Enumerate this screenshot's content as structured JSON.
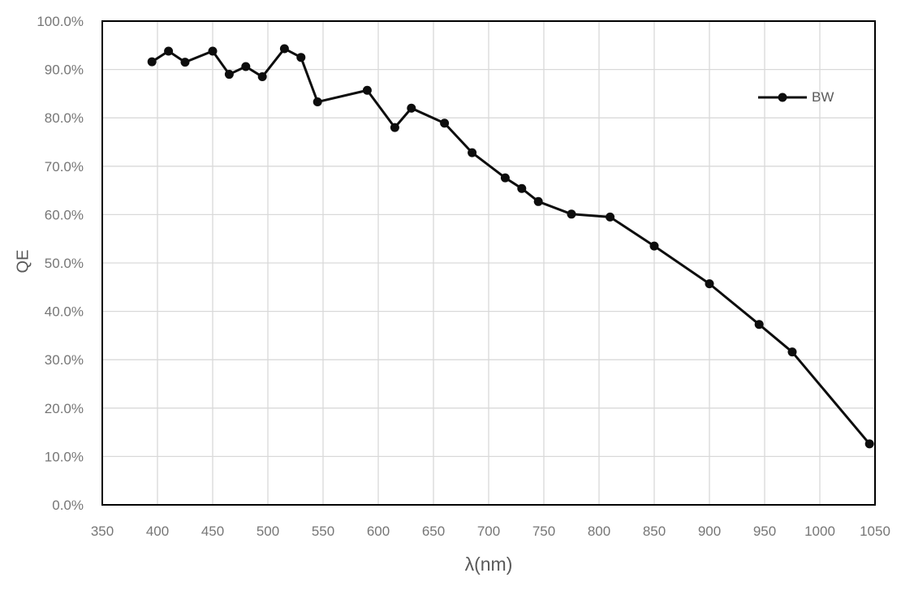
{
  "chart_data": {
    "type": "line",
    "title": "",
    "xlabel": "λ(nm)",
    "ylabel": "QE",
    "xlim": [
      350,
      1050
    ],
    "ylim": [
      0,
      100
    ],
    "x_ticks": [
      350,
      400,
      450,
      500,
      550,
      600,
      650,
      700,
      750,
      800,
      850,
      900,
      950,
      1000,
      1050
    ],
    "x_tick_labels": [
      "350",
      "400",
      "450",
      "500",
      "550",
      "600",
      "650",
      "700",
      "750",
      "800",
      "850",
      "900",
      "950",
      "1000",
      "1050"
    ],
    "y_ticks": [
      0,
      10,
      20,
      30,
      40,
      50,
      60,
      70,
      80,
      90,
      100
    ],
    "y_tick_labels": [
      "0.0%",
      "10.0%",
      "20.0%",
      "30.0%",
      "40.0%",
      "50.0%",
      "60.0%",
      "70.0%",
      "80.0%",
      "90.0%",
      "100.0%"
    ],
    "grid": true,
    "legend_position": "inside-top-right",
    "series": [
      {
        "name": "BW",
        "color": "#0d0d0d",
        "marker": "circle",
        "x": [
          395,
          410,
          425,
          450,
          465,
          480,
          495,
          515,
          530,
          545,
          590,
          615,
          630,
          660,
          685,
          715,
          730,
          745,
          775,
          810,
          850,
          900,
          945,
          975,
          1045
        ],
        "y": [
          91.6,
          93.8,
          91.5,
          93.8,
          89.0,
          90.6,
          88.5,
          94.3,
          92.5,
          83.3,
          85.7,
          78.0,
          82.0,
          78.9,
          72.8,
          67.6,
          65.4,
          62.7,
          60.1,
          59.5,
          53.5,
          45.7,
          37.3,
          31.6,
          12.6
        ]
      }
    ]
  },
  "colors": {
    "series": "#0d0d0d",
    "grid": "#d9d9d9",
    "plot_border": "#000000",
    "tick_label": "#767676",
    "axis_title": "#595959",
    "background": "#ffffff"
  }
}
